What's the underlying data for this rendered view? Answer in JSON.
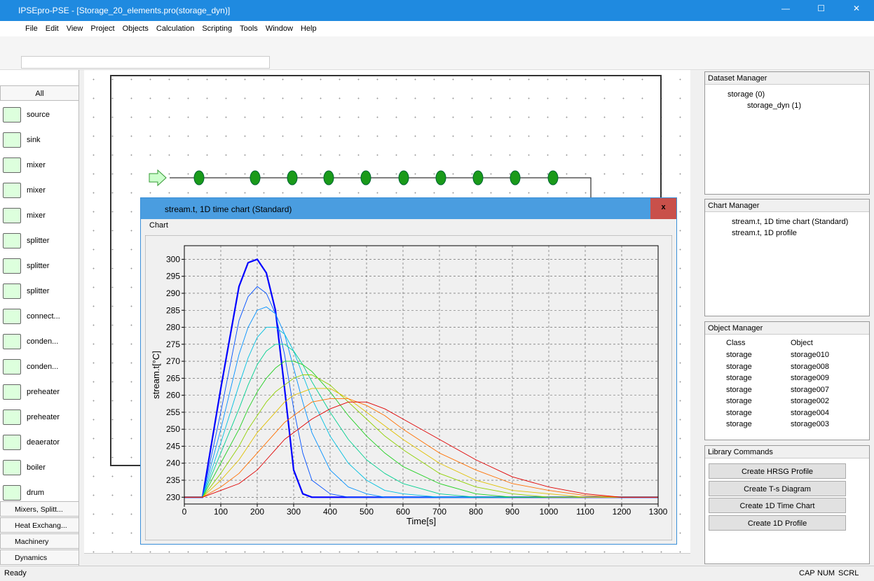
{
  "window": {
    "title": "IPSEpro-PSE - [Storage_20_elements.pro(storage_dyn)]"
  },
  "menu": [
    "File",
    "Edit",
    "View",
    "Project",
    "Objects",
    "Calculation",
    "Scripting",
    "Tools",
    "Window",
    "Help"
  ],
  "palette": {
    "header": "All",
    "items": [
      "source",
      "sink",
      "mixer",
      "mixer",
      "mixer",
      "splitter",
      "splitter",
      "splitter",
      "connect...",
      "conden...",
      "conden...",
      "preheater",
      "preheater",
      "deaerator",
      "boiler",
      "drum"
    ],
    "groups": [
      "Mixers, Splitt...",
      "Heat Exchang...",
      "Machinery",
      "Dynamics"
    ]
  },
  "chart_window": {
    "title": "stream.t, 1D time chart (Standard)",
    "menu": "Chart"
  },
  "chart_data": {
    "type": "line",
    "x_label": "Time[s]",
    "y_label": "stream.t[°C]",
    "x": [
      0,
      50,
      100,
      150,
      175,
      200,
      225,
      250,
      275,
      300,
      325,
      350,
      400,
      450,
      500,
      550,
      600,
      700,
      800,
      900,
      1000,
      1100,
      1200,
      1300
    ],
    "series": [
      {
        "color": "#0000ff",
        "values": [
          230,
          230,
          262,
          292,
          299,
          300,
          296,
          285,
          262,
          238,
          231,
          230,
          230,
          230,
          230,
          230,
          230,
          230,
          230,
          230,
          230,
          230,
          230,
          230
        ]
      },
      {
        "color": "#0050ff",
        "values": [
          230,
          230,
          255,
          282,
          289,
          292,
          290,
          284,
          272,
          256,
          243,
          235,
          231,
          230,
          230,
          230,
          230,
          230,
          230,
          230,
          230,
          230,
          230,
          230
        ]
      },
      {
        "color": "#0090ff",
        "values": [
          230,
          230,
          250,
          272,
          280,
          285,
          286,
          284,
          278,
          268,
          258,
          249,
          238,
          233,
          231,
          230,
          230,
          230,
          230,
          230,
          230,
          230,
          230,
          230
        ]
      },
      {
        "color": "#00c0e0",
        "values": [
          230,
          230,
          246,
          263,
          271,
          277,
          280,
          280,
          278,
          273,
          266,
          259,
          248,
          240,
          235,
          232,
          231,
          230,
          230,
          230,
          230,
          230,
          230,
          230
        ]
      },
      {
        "color": "#00d090",
        "values": [
          230,
          230,
          243,
          256,
          263,
          269,
          273,
          275,
          275,
          273,
          269,
          264,
          255,
          247,
          241,
          237,
          234,
          231,
          230,
          230,
          230,
          230,
          230,
          230
        ]
      },
      {
        "color": "#20d020",
        "values": [
          230,
          230,
          240,
          250,
          256,
          261,
          265,
          268,
          270,
          270,
          269,
          267,
          261,
          254,
          248,
          243,
          239,
          234,
          231,
          230,
          230,
          230,
          230,
          230
        ]
      },
      {
        "color": "#90d000",
        "values": [
          230,
          230,
          237,
          245,
          250,
          254,
          258,
          261,
          263,
          265,
          266,
          266,
          263,
          258,
          253,
          248,
          244,
          237,
          233,
          231,
          230,
          230,
          230,
          230
        ]
      },
      {
        "color": "#e0c000",
        "values": [
          230,
          230,
          235,
          241,
          245,
          249,
          252,
          255,
          258,
          260,
          261,
          262,
          262,
          259,
          255,
          251,
          247,
          240,
          235,
          232,
          231,
          230,
          230,
          230
        ]
      },
      {
        "color": "#ff7000",
        "values": [
          230,
          230,
          233,
          237,
          240,
          243,
          246,
          249,
          252,
          254,
          256,
          258,
          259,
          259,
          257,
          254,
          250,
          243,
          238,
          234,
          232,
          230.5,
          230,
          230
        ]
      },
      {
        "color": "#e00000",
        "values": [
          230,
          230,
          232,
          234,
          236,
          238,
          241,
          244,
          247,
          249,
          251,
          253,
          256,
          258,
          258,
          256,
          253,
          247,
          241,
          236,
          233,
          231,
          230,
          230
        ]
      }
    ],
    "xlim": [
      0,
      1300
    ],
    "ylim": [
      228,
      304
    ],
    "xticks": [
      0,
      100,
      200,
      300,
      400,
      500,
      600,
      700,
      800,
      900,
      1000,
      1100,
      1200,
      1300
    ],
    "yticks": [
      230,
      235,
      240,
      245,
      250,
      255,
      260,
      265,
      270,
      275,
      280,
      285,
      290,
      295,
      300
    ],
    "grid": true
  },
  "dataset_manager": {
    "title": "Dataset Manager",
    "items": [
      "storage (0)",
      "storage_dyn (1)"
    ]
  },
  "chart_manager": {
    "title": "Chart Manager",
    "items": [
      "stream.t, 1D time chart (Standard)",
      "stream.t, 1D profile"
    ]
  },
  "object_manager": {
    "title": "Object Manager",
    "columns": [
      "Class",
      "Object"
    ],
    "rows": [
      [
        "storage",
        "storage010"
      ],
      [
        "storage",
        "storage008"
      ],
      [
        "storage",
        "storage009"
      ],
      [
        "storage",
        "storage007"
      ],
      [
        "storage",
        "storage002"
      ],
      [
        "storage",
        "storage004"
      ],
      [
        "storage",
        "storage003"
      ]
    ]
  },
  "library_commands": {
    "title": "Library Commands",
    "buttons": [
      "Create HRSG Profile",
      "Create T-s Diagram",
      "Create 1D Time Chart",
      "Create 1D Profile"
    ]
  },
  "status": {
    "text": "Ready",
    "indicators": [
      "CAP",
      "NUM",
      "SCRL"
    ]
  }
}
